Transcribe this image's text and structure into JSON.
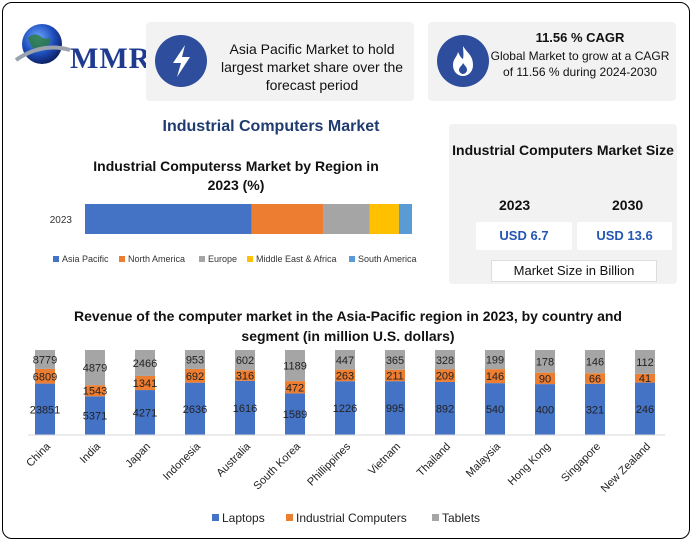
{
  "brand": {
    "name": "MMR"
  },
  "highlight1": {
    "icon": "lightning-bolt-icon",
    "text": "Asia Pacific Market to hold largest market share over the forecast period"
  },
  "highlight2": {
    "icon": "flame-icon",
    "title": "11.56 % CAGR",
    "text": "Global Market to grow at a CAGR of 11.56 % during 2024-2030"
  },
  "main_title": "Industrial Computers Market",
  "market_size": {
    "title": "Industrial Computers Market Size",
    "year1": "2023",
    "value1": "USD 6.7",
    "year2": "2030",
    "value2": "USD 13.6",
    "unit_label": "Market Size in Billion"
  },
  "colors": {
    "accent": "#2e4d9c",
    "laptops": "#4472c4",
    "industrial": "#ed7d31",
    "tablets": "#a5a5a5",
    "mea": "#ffc000",
    "sa": "#5b9bd5"
  },
  "chart_data": [
    {
      "type": "bar",
      "orientation": "horizontal-stacked-100",
      "title": "Industrial Computerss Market by Region in 2023 (%)",
      "categories": [
        "2023"
      ],
      "series": [
        {
          "name": "Asia Pacific",
          "color": "#4472c4",
          "values": [
            51
          ]
        },
        {
          "name": "North America",
          "color": "#ed7d31",
          "values": [
            22
          ]
        },
        {
          "name": "Europe",
          "color": "#a5a5a5",
          "values": [
            14
          ]
        },
        {
          "name": "Middle East & Africa",
          "color": "#ffc000",
          "values": [
            9
          ]
        },
        {
          "name": "South America",
          "color": "#5b9bd5",
          "values": [
            4
          ]
        }
      ],
      "legend": "bottom"
    },
    {
      "type": "bar",
      "orientation": "vertical-stacked-100",
      "title": "Revenue of the computer market in the Asia-Pacific region in 2023, by country and segment (in million U.S. dollars)",
      "categories": [
        "China",
        "India",
        "Japan",
        "Indonesia",
        "Australia",
        "South Korea",
        "Phillippines",
        "Vietnam",
        "Thailand",
        "Malaysia",
        "Hong Kong",
        "Singapore",
        "New Zealand"
      ],
      "series": [
        {
          "name": "Laptops",
          "color": "#4472c4",
          "values": [
            23851,
            5371,
            4271,
            2636,
            1616,
            1589,
            1226,
            995,
            892,
            540,
            400,
            321,
            246
          ]
        },
        {
          "name": "Industrial Computers",
          "color": "#ed7d31",
          "values": [
            6809,
            1543,
            1341,
            692,
            316,
            472,
            263,
            211,
            209,
            146,
            90,
            66,
            41
          ]
        },
        {
          "name": "Tablets",
          "color": "#a5a5a5",
          "values": [
            8779,
            4879,
            2466,
            953,
            602,
            1189,
            447,
            365,
            328,
            199,
            178,
            146,
            112
          ]
        }
      ],
      "legend": "bottom"
    }
  ]
}
